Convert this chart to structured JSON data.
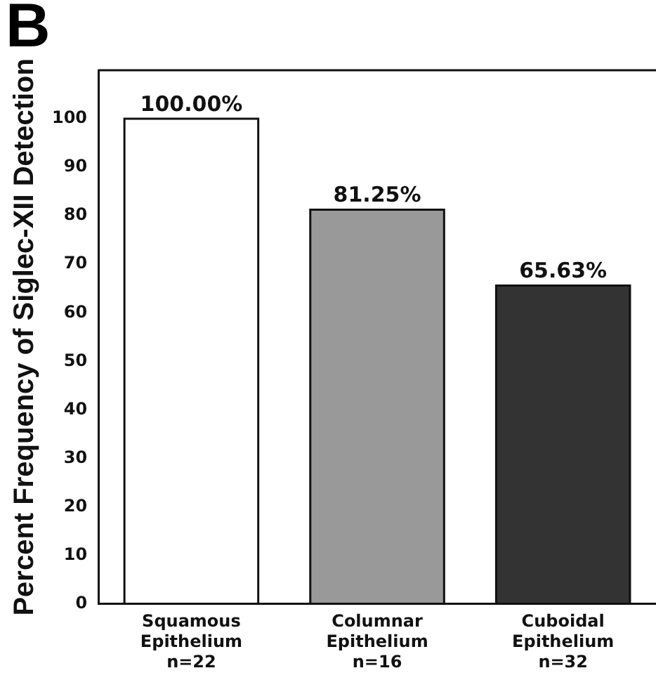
{
  "chart_data": {
    "type": "bar",
    "title": "B",
    "ylabel": "Percent Frequency of Siglec-XII Detection",
    "categories": [
      "Squamous\nEpithelium\nn=22",
      "Columnar\nEpithelium\nn=16",
      "Cuboidal\nEpithelium\nn=32"
    ],
    "values": [
      100,
      81.25,
      65.63
    ],
    "value_labels": [
      "100.00%",
      "81.25%",
      "65.63%"
    ],
    "colors": [
      "#ffffff",
      "#999999",
      "#333333"
    ],
    "ylim": [
      0,
      110
    ],
    "yticks": [
      0,
      10,
      20,
      30,
      40,
      50,
      60,
      70,
      80,
      90,
      100
    ],
    "grid": false,
    "legend": false
  }
}
